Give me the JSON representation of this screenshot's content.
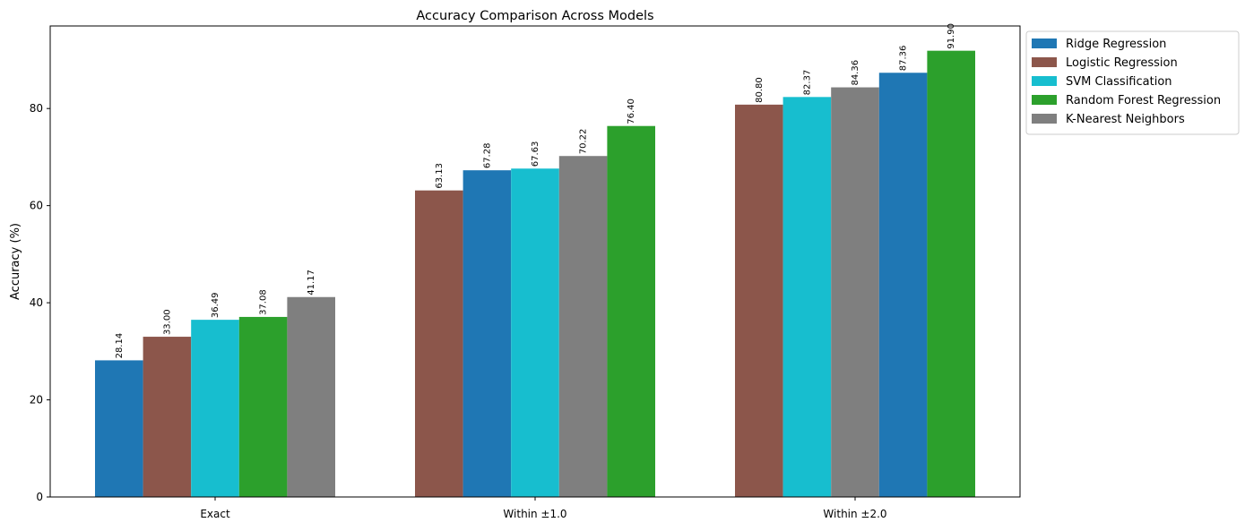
{
  "chart_data": {
    "type": "bar",
    "title": "Accuracy Comparison Across Models",
    "xlabel": "",
    "ylabel": "Accuracy (%)",
    "categories": [
      "Exact",
      "Within ±1.0",
      "Within ±2.0"
    ],
    "ylim": [
      0,
      97
    ],
    "yticks": [
      0,
      20,
      40,
      60,
      80
    ],
    "grid": false,
    "legend_position": "outside-top-right",
    "series": [
      {
        "name": "Ridge Regression",
        "color": "#1f77b4"
      },
      {
        "name": "Logistic Regression",
        "color": "#8c564b"
      },
      {
        "name": "SVM Classification",
        "color": "#17becf"
      },
      {
        "name": "Random Forest Regression",
        "color": "#2ca02c"
      },
      {
        "name": "K-Nearest Neighbors",
        "color": "#7f7f7f"
      }
    ],
    "groups": [
      {
        "category": "Exact",
        "bars": [
          {
            "series": "Ridge Regression",
            "value": 28.14,
            "label": "28.14"
          },
          {
            "series": "Logistic Regression",
            "value": 33.0,
            "label": "33.00"
          },
          {
            "series": "SVM Classification",
            "value": 36.49,
            "label": "36.49"
          },
          {
            "series": "Random Forest Regression",
            "value": 37.08,
            "label": "37.08"
          },
          {
            "series": "K-Nearest Neighbors",
            "value": 41.17,
            "label": "41.17"
          }
        ]
      },
      {
        "category": "Within ±1.0",
        "bars": [
          {
            "series": "Logistic Regression",
            "value": 63.13,
            "label": "63.13"
          },
          {
            "series": "Ridge Regression",
            "value": 67.28,
            "label": "67.28"
          },
          {
            "series": "SVM Classification",
            "value": 67.63,
            "label": "67.63"
          },
          {
            "series": "K-Nearest Neighbors",
            "value": 70.22,
            "label": "70.22"
          },
          {
            "series": "Random Forest Regression",
            "value": 76.4,
            "label": "76.40"
          }
        ]
      },
      {
        "category": "Within ±2.0",
        "bars": [
          {
            "series": "Logistic Regression",
            "value": 80.8,
            "label": "80.80"
          },
          {
            "series": "SVM Classification",
            "value": 82.37,
            "label": "82.37"
          },
          {
            "series": "K-Nearest Neighbors",
            "value": 84.36,
            "label": "84.36"
          },
          {
            "series": "Ridge Regression",
            "value": 87.36,
            "label": "87.36"
          },
          {
            "series": "Random Forest Regression",
            "value": 91.9,
            "label": "91.90"
          }
        ]
      }
    ]
  }
}
